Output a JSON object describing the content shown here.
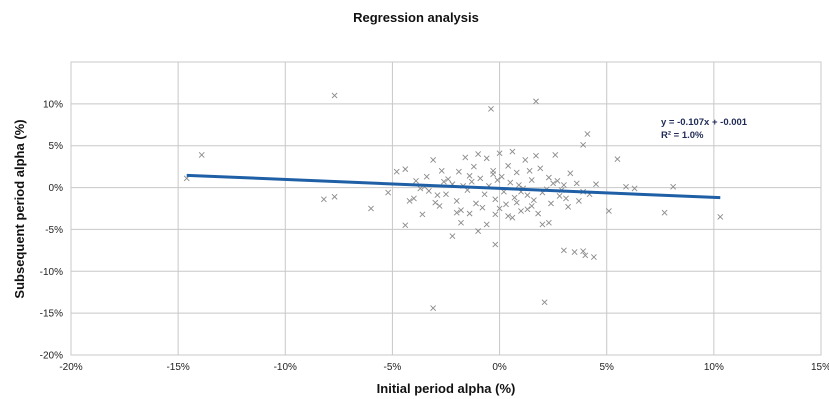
{
  "chart_data": {
    "type": "scatter",
    "title": "Regression analysis",
    "xlabel": "Initial period alpha (%)",
    "ylabel": "Subsequent period alpha (%)",
    "xlim": [
      -20,
      15
    ],
    "ylim": [
      -20,
      15
    ],
    "x_ticks": [
      -20,
      -15,
      -10,
      -5,
      0,
      5,
      10,
      15
    ],
    "y_ticks": [
      -20,
      -15,
      -10,
      -5,
      0,
      5,
      10
    ],
    "x_tick_labels": [
      "-20%",
      "-15%",
      "-10%",
      "-5%",
      "0%",
      "5%",
      "10%",
      "15%"
    ],
    "y_tick_labels": [
      "-20%",
      "-15%",
      "-10%",
      "-5%",
      "0%",
      "5%",
      "10%"
    ],
    "grid": true,
    "trendline": {
      "label": "y = -0.107x + -0.001",
      "r2_label": "R² = 1.0%",
      "x_range": [
        -14.6,
        10.3
      ],
      "slope": -0.107,
      "intercept": -0.1,
      "color": "#1f5fa6"
    },
    "marker": "x",
    "marker_color": "#8a8a8a",
    "points": [
      [
        -14.6,
        1.1
      ],
      [
        -13.9,
        3.9
      ],
      [
        -7.7,
        11.0
      ],
      [
        -8.2,
        -1.4
      ],
      [
        -7.7,
        -1.1
      ],
      [
        -6.0,
        -2.5
      ],
      [
        -5.2,
        -0.6
      ],
      [
        -4.4,
        -4.5
      ],
      [
        -4.2,
        -1.6
      ],
      [
        -4.0,
        -1.3
      ],
      [
        -3.6,
        -3.2
      ],
      [
        -3.3,
        -0.4
      ],
      [
        -3.0,
        -1.8
      ],
      [
        -2.8,
        -2.2
      ],
      [
        -3.1,
        -14.4
      ],
      [
        -2.2,
        -5.8
      ],
      [
        -2.0,
        -3.0
      ],
      [
        -1.8,
        -4.2
      ],
      [
        -1.4,
        -3.1
      ],
      [
        -1.0,
        -5.2
      ],
      [
        -0.6,
        -4.4
      ],
      [
        -0.2,
        -3.2
      ],
      [
        -0.4,
        9.4
      ],
      [
        1.7,
        10.3
      ],
      [
        -0.2,
        -6.8
      ],
      [
        0.0,
        -2.5
      ],
      [
        0.6,
        -3.6
      ],
      [
        1.0,
        -2.8
      ],
      [
        1.5,
        -2.2
      ],
      [
        2.0,
        -4.4
      ],
      [
        2.3,
        -4.2
      ],
      [
        2.1,
        -13.7
      ],
      [
        3.0,
        -7.5
      ],
      [
        3.5,
        -7.7
      ],
      [
        3.9,
        -7.6
      ],
      [
        4.0,
        -8.1
      ],
      [
        4.4,
        -8.3
      ],
      [
        3.2,
        -2.3
      ],
      [
        3.7,
        -1.6
      ],
      [
        2.8,
        -1.0
      ],
      [
        5.1,
        -2.8
      ],
      [
        5.5,
        3.4
      ],
      [
        5.9,
        0.1
      ],
      [
        6.3,
        -0.1
      ],
      [
        7.7,
        -3.0
      ],
      [
        8.1,
        0.1
      ],
      [
        10.3,
        -3.5
      ],
      [
        4.1,
        6.4
      ],
      [
        3.9,
        5.1
      ],
      [
        4.5,
        0.4
      ],
      [
        3.9,
        -0.5
      ],
      [
        -4.8,
        1.9
      ],
      [
        -4.4,
        2.2
      ],
      [
        -3.9,
        0.8
      ],
      [
        -3.4,
        1.3
      ],
      [
        -3.1,
        3.3
      ],
      [
        -2.7,
        2.0
      ],
      [
        -2.2,
        0.4
      ],
      [
        -1.9,
        1.9
      ],
      [
        -1.6,
        3.6
      ],
      [
        -1.2,
        2.5
      ],
      [
        -0.9,
        1.1
      ],
      [
        -0.6,
        3.5
      ],
      [
        -0.3,
        2.0
      ],
      [
        0.0,
        4.1
      ],
      [
        0.4,
        2.6
      ],
      [
        0.8,
        1.8
      ],
      [
        1.2,
        3.3
      ],
      [
        1.5,
        0.9
      ],
      [
        1.9,
        2.3
      ],
      [
        2.3,
        1.2
      ],
      [
        2.6,
        3.9
      ],
      [
        3.0,
        0.3
      ],
      [
        3.3,
        1.7
      ],
      [
        -2.5,
        -0.8
      ],
      [
        -2.0,
        -1.6
      ],
      [
        -1.5,
        -0.3
      ],
      [
        -1.1,
        -1.9
      ],
      [
        -0.7,
        -0.8
      ],
      [
        -0.2,
        -1.4
      ],
      [
        0.2,
        -0.5
      ],
      [
        0.7,
        -1.2
      ],
      [
        1.1,
        -0.1
      ],
      [
        1.6,
        -1.5
      ],
      [
        2.0,
        -0.6
      ],
      [
        2.4,
        -1.9
      ],
      [
        2.9,
        -0.3
      ],
      [
        -3.7,
        -0.1
      ],
      [
        -1.7,
        0.2
      ],
      [
        0.5,
        0.6
      ],
      [
        1.3,
        -0.9
      ],
      [
        2.7,
        0.8
      ],
      [
        -0.8,
        -2.4
      ],
      [
        0.3,
        -2.0
      ],
      [
        1.8,
        -3.1
      ],
      [
        -2.9,
        -0.9
      ],
      [
        -2.4,
        1.0
      ],
      [
        -1.3,
        0.7
      ],
      [
        -0.5,
        0.2
      ],
      [
        0.1,
        1.3
      ],
      [
        0.9,
        0.3
      ],
      [
        1.4,
        2.0
      ],
      [
        2.2,
        -0.2
      ],
      [
        3.6,
        0.5
      ],
      [
        4.2,
        -0.8
      ],
      [
        -1.0,
        4.0
      ],
      [
        0.6,
        4.3
      ],
      [
        1.7,
        3.8
      ],
      [
        -3.5,
        0.1
      ],
      [
        -0.1,
        0.9
      ],
      [
        1.0,
        -0.5
      ],
      [
        2.5,
        0.5
      ],
      [
        -1.8,
        -2.7
      ],
      [
        0.4,
        -3.4
      ],
      [
        1.3,
        -2.6
      ],
      [
        -0.3,
        1.6
      ],
      [
        -2.6,
        0.7
      ],
      [
        3.1,
        -1.3
      ],
      [
        -1.4,
        1.4
      ],
      [
        0.8,
        -1.8
      ]
    ]
  }
}
